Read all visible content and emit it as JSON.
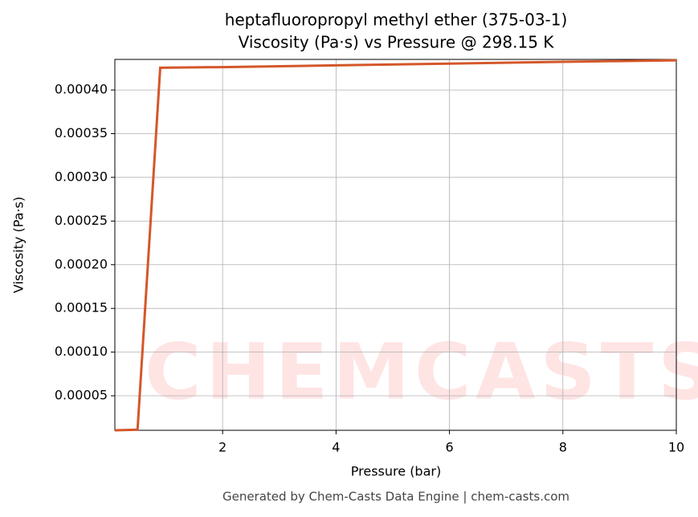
{
  "chart_data": {
    "type": "line",
    "title": [
      "heptafluoropropyl methyl ether (375-03-1)",
      "Viscosity (Pa·s) vs Pressure @ 298.15 K"
    ],
    "xlabel": "Pressure (bar)",
    "ylabel": "Viscosity (Pa·s)",
    "footer": "Generated by Chem-Casts Data Engine | chem-casts.com",
    "watermark": "CHEMCASTS",
    "x": [
      0.1,
      0.5,
      0.9,
      2,
      4,
      6,
      8,
      10
    ],
    "series": [
      {
        "name": "Viscosity",
        "color": "#d4572a",
        "values": [
          1.05e-05,
          1.12e-05,
          0.0004255,
          0.0004262,
          0.0004282,
          0.0004302,
          0.0004322,
          0.000434
        ]
      }
    ],
    "xlim": [
      0.1,
      10
    ],
    "ylim": [
      1.05e-05,
      0.000435
    ],
    "xticks": [
      2,
      4,
      6,
      8,
      10
    ],
    "yticks": [
      {
        "value": 5e-05,
        "label": "0.00005"
      },
      {
        "value": 0.0001,
        "label": "0.00010"
      },
      {
        "value": 0.00015,
        "label": "0.00015"
      },
      {
        "value": 0.0002,
        "label": "0.00020"
      },
      {
        "value": 0.00025,
        "label": "0.00025"
      },
      {
        "value": 0.0003,
        "label": "0.00030"
      },
      {
        "value": 0.00035,
        "label": "0.00035"
      },
      {
        "value": 0.0004,
        "label": "0.00040"
      }
    ],
    "grid": true
  }
}
